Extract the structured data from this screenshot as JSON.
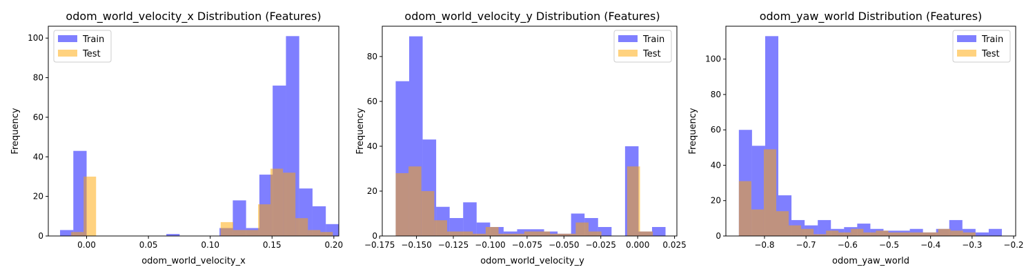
{
  "chart_data": [
    {
      "type": "histogram",
      "title": "odom_world_velocity_x Distribution (Features)",
      "xlabel": "odom_world_velocity_x",
      "ylabel": "Frequency",
      "xlim": [
        -0.031,
        0.204
      ],
      "ylim": [
        0,
        106
      ],
      "xticks": [
        "0.00",
        "0.05",
        "0.10",
        "0.15",
        "0.20"
      ],
      "xtick_values": [
        0.0,
        0.05,
        0.1,
        0.15,
        0.2
      ],
      "yticks": [
        "0",
        "20",
        "40",
        "60",
        "80",
        "100"
      ],
      "ytick_values": [
        0,
        20,
        40,
        60,
        80,
        100
      ],
      "legend": "top-left",
      "series": [
        {
          "name": "Train",
          "color": "#0000ff",
          "alpha": 0.5,
          "bin_start": -0.0215,
          "bin_width": 0.01075,
          "counts": [
            3,
            43,
            0,
            0,
            0,
            0,
            0,
            0,
            1,
            0,
            0,
            0,
            4,
            18,
            4,
            31,
            76,
            101,
            24,
            15,
            6
          ]
        },
        {
          "name": "Test",
          "color": "#ffa500",
          "alpha": 0.5,
          "bin_start": -0.0125,
          "bin_width": 0.01008,
          "counts": [
            2,
            30,
            0,
            0,
            0,
            0,
            0,
            0,
            0,
            0,
            0,
            0,
            7,
            3,
            3,
            16,
            34,
            32,
            9,
            3,
            2
          ]
        }
      ]
    },
    {
      "type": "histogram",
      "title": "odom_world_velocity_y Distribution (Features)",
      "xlabel": "odom_world_velocity_y",
      "ylabel": "Frequency",
      "xlim": [
        -0.1732,
        0.0266
      ],
      "ylim": [
        0,
        93.5
      ],
      "xticks": [
        "−0.175",
        "−0.150",
        "−0.125",
        "−0.100",
        "−0.075",
        "−0.050",
        "−0.025",
        "0.000",
        "0.025"
      ],
      "xtick_values": [
        -0.175,
        -0.15,
        -0.125,
        -0.1,
        -0.075,
        -0.05,
        -0.025,
        0.0,
        0.025
      ],
      "yticks": [
        "0",
        "20",
        "40",
        "60",
        "80"
      ],
      "ytick_values": [
        0,
        20,
        40,
        60,
        80
      ],
      "legend": "top-right",
      "series": [
        {
          "name": "Train",
          "color": "#0000ff",
          "alpha": 0.5,
          "bin_start": -0.1641,
          "bin_width": 0.00915,
          "counts": [
            69,
            89,
            43,
            13,
            8,
            15,
            6,
            4,
            2,
            3,
            3,
            2,
            1,
            10,
            8,
            4,
            0,
            40,
            2,
            4
          ]
        },
        {
          "name": "Test",
          "color": "#ffa500",
          "alpha": 0.5,
          "bin_start": -0.1641,
          "bin_width": 0.00872,
          "counts": [
            28,
            31,
            20,
            7,
            2,
            2,
            1,
            4,
            1,
            1,
            2,
            2,
            1,
            1,
            6,
            2,
            0,
            0,
            31,
            2
          ]
        }
      ]
    },
    {
      "type": "histogram",
      "title": "odom_yaw_world Distribution (Features)",
      "xlabel": "odom_yaw_world",
      "ylabel": "Frequency",
      "xlim": [
        -0.893,
        -0.195
      ],
      "ylim": [
        0,
        118.6
      ],
      "xticks": [
        "−0.8",
        "−0.7",
        "−0.6",
        "−0.5",
        "−0.4",
        "−0.3",
        "−0.2"
      ],
      "xtick_values": [
        -0.8,
        -0.7,
        -0.6,
        -0.5,
        -0.4,
        -0.3,
        -0.2
      ],
      "yticks": [
        "0",
        "20",
        "40",
        "60",
        "80",
        "100"
      ],
      "ytick_values": [
        0,
        20,
        40,
        60,
        80,
        100
      ],
      "legend": "top-right",
      "series": [
        {
          "name": "Train",
          "color": "#0000ff",
          "alpha": 0.5,
          "bin_start": -0.8617,
          "bin_width": 0.03167,
          "counts": [
            60,
            51,
            113,
            23,
            9,
            6,
            9,
            4,
            5,
            7,
            4,
            3,
            3,
            4,
            2,
            4,
            9,
            4,
            2,
            4
          ]
        },
        {
          "name": "Test",
          "color": "#ffa500",
          "alpha": 0.5,
          "bin_start": -0.8617,
          "bin_width": 0.03,
          "counts": [
            31,
            15,
            49,
            14,
            6,
            4,
            1,
            3,
            2,
            4,
            2,
            3,
            2,
            2,
            2,
            2,
            4,
            3,
            2,
            0
          ]
        }
      ]
    }
  ]
}
